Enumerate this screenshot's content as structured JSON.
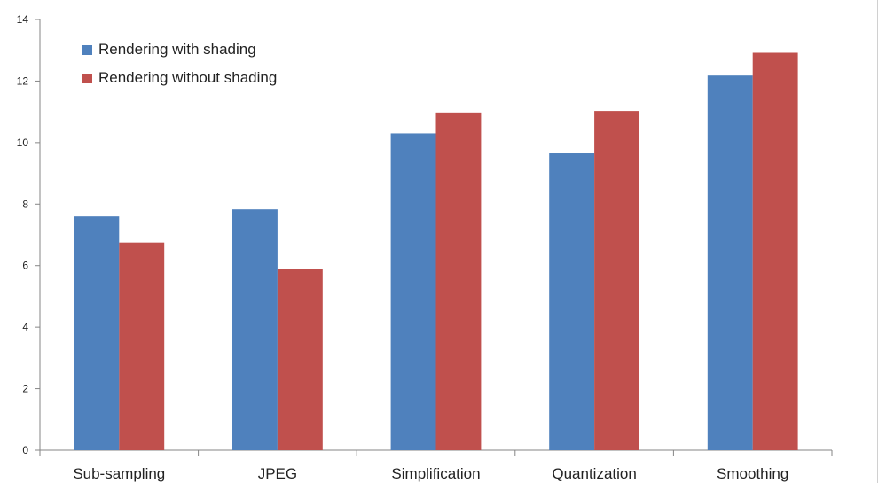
{
  "chart_data": {
    "type": "bar",
    "categories": [
      "Sub-sampling",
      "JPEG",
      "Simplification",
      "Quantization",
      "Smoothing"
    ],
    "series": [
      {
        "name": "Rendering with shading",
        "color": "#4F81BD",
        "values": [
          7.6,
          7.83,
          10.3,
          9.65,
          12.18
        ]
      },
      {
        "name": "Rendering without shading",
        "color": "#C0504D",
        "values": [
          6.75,
          5.88,
          10.98,
          11.03,
          12.92
        ]
      }
    ],
    "ylim": [
      0,
      14
    ],
    "yticks": [
      0,
      2,
      4,
      6,
      8,
      10,
      12,
      14
    ],
    "xlabel": "",
    "ylabel": "",
    "legend_position": "top-left",
    "grid": false
  }
}
